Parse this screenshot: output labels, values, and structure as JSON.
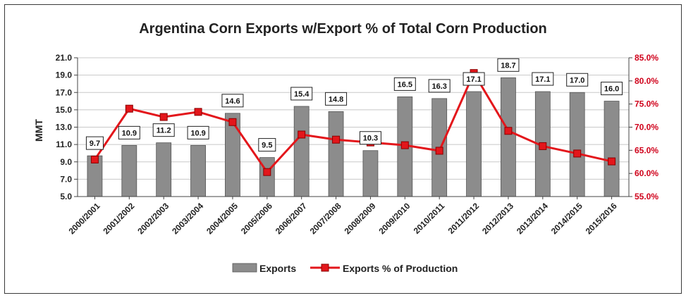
{
  "chart_data": {
    "type": "bar",
    "title": "Argentina Corn Exports w/Export % of Total Corn Production",
    "ylabel": "MMT",
    "y2label": "",
    "categories": [
      "2000/2001",
      "2001/2002",
      "2002/2003",
      "2003/2004",
      "2004/2005",
      "2005/2006",
      "2006/2007",
      "2007/2008",
      "2008/2009",
      "2009/2010",
      "2010/2011",
      "2011/2012",
      "2012/2013",
      "2013/2014",
      "2014/2015",
      "2015/2016"
    ],
    "ylim": [
      5.0,
      21.0
    ],
    "yticks": [
      "21.0",
      "19.0",
      "17.0",
      "15.0",
      "13.0",
      "11.0",
      "9.0",
      "7.0",
      "5.0"
    ],
    "y2lim": [
      55.0,
      85.0
    ],
    "y2ticks": [
      "85.0%",
      "80.0%",
      "75.0%",
      "70.0%",
      "65.0%",
      "60.0%",
      "55.0%"
    ],
    "grid": true,
    "legend_position": "bottom",
    "series": [
      {
        "name": "Exports",
        "kind": "bar",
        "axis": "left",
        "color": "#8c8c8c",
        "values": [
          9.7,
          10.9,
          11.2,
          10.9,
          14.6,
          9.5,
          15.4,
          14.8,
          10.3,
          16.5,
          16.3,
          17.1,
          18.7,
          17.1,
          17.0,
          16.0
        ],
        "labels": [
          "9.7",
          "10.9",
          "11.2",
          "10.9",
          "14.6",
          "9.5",
          "15.4",
          "14.8",
          "10.3",
          "16.5",
          "16.3",
          "17.1",
          "18.7",
          "17.1",
          "17.0",
          "16.0"
        ]
      },
      {
        "name": "Exports % of Production",
        "kind": "line",
        "axis": "right",
        "color": "#e3161b",
        "values": [
          63.0,
          74.0,
          72.2,
          73.3,
          71.1,
          60.3,
          68.4,
          67.3,
          66.7,
          66.1,
          64.9,
          81.7,
          69.2,
          65.9,
          64.3,
          62.6
        ]
      }
    ]
  }
}
